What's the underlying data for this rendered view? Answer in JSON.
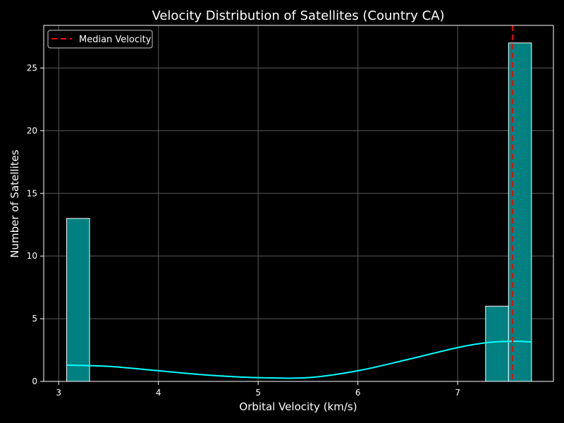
{
  "chart_data": {
    "type": "bar",
    "title": "Velocity Distribution of Satellites (Country CA)",
    "xlabel": "Orbital Velocity (km/s)",
    "ylabel": "Number of Satellites",
    "xlim": [
      2.85,
      7.96
    ],
    "ylim": [
      0,
      28.4
    ],
    "xticks": [
      3,
      4,
      5,
      6,
      7
    ],
    "yticks": [
      0,
      5,
      10,
      15,
      20,
      25
    ],
    "grid": true,
    "legend_position": "top-left",
    "bins": [
      {
        "x0": 3.08,
        "x1": 3.31,
        "count": 13
      },
      {
        "x0": 7.28,
        "x1": 7.51,
        "count": 6
      },
      {
        "x0": 7.51,
        "x1": 7.74,
        "count": 27
      }
    ],
    "kde": {
      "x": [
        3.08,
        3.5,
        4.0,
        4.5,
        5.0,
        5.5,
        6.0,
        6.5,
        7.0,
        7.3,
        7.55,
        7.74
      ],
      "y": [
        1.3,
        1.2,
        0.85,
        0.5,
        0.3,
        0.3,
        0.85,
        1.75,
        2.7,
        3.1,
        3.2,
        3.15
      ]
    },
    "median": {
      "name": "Median Velocity",
      "value": 7.55
    },
    "colors": {
      "bar_fill": "#008080",
      "bar_edge": "#ffffff",
      "kde": "#00ffff",
      "median": "#ff0000",
      "grid": "#5a5a5a",
      "background": "#000000",
      "text": "#ffffff"
    }
  }
}
